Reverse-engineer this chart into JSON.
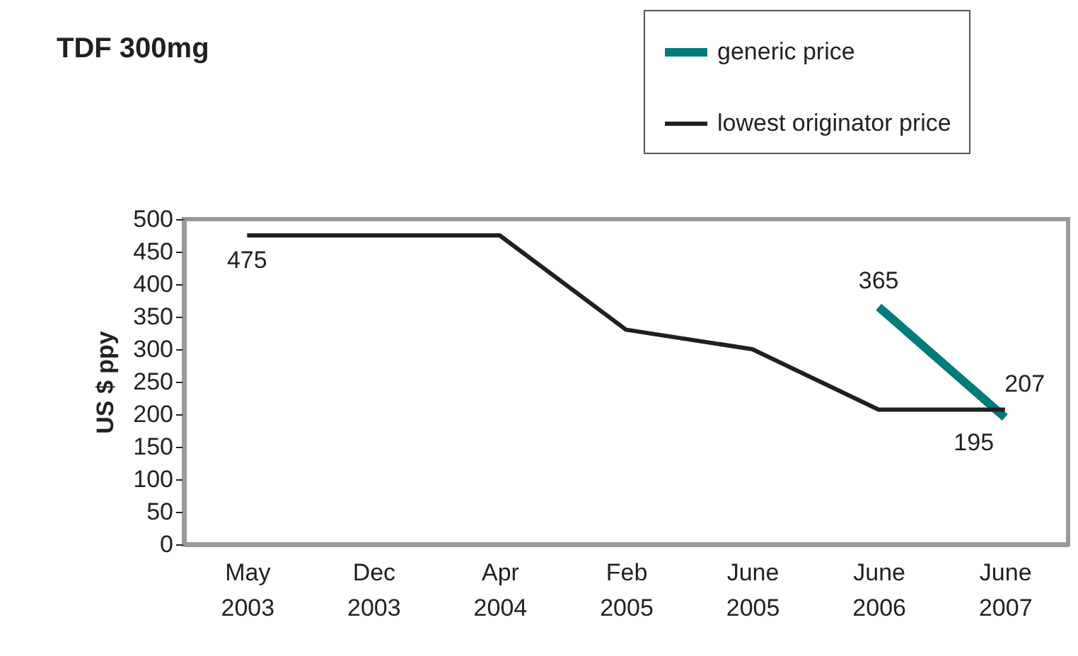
{
  "chart_data": {
    "type": "line",
    "title": "TDF 300mg",
    "ylabel": "US $ ppy",
    "categories": [
      "May 2003",
      "Dec 2003",
      "Apr 2004",
      "Feb 2005",
      "June 2005",
      "June 2006",
      "June 2007"
    ],
    "series": [
      {
        "name": "generic price",
        "color": "#007b7b",
        "values": [
          null,
          null,
          null,
          null,
          null,
          365,
          195
        ],
        "value_labels": [
          null,
          null,
          null,
          null,
          null,
          "365",
          "195"
        ]
      },
      {
        "name": "lowest originator price",
        "color": "#231f20",
        "values": [
          475,
          475,
          475,
          330,
          300,
          207,
          207
        ],
        "value_labels": [
          "475",
          null,
          null,
          null,
          null,
          null,
          "207"
        ]
      }
    ],
    "ylim": [
      0,
      500
    ],
    "yticks": [
      0,
      50,
      100,
      150,
      200,
      250,
      300,
      350,
      400,
      450,
      500
    ],
    "grid": false,
    "legend": "top right",
    "marker": "none",
    "line_style": "solid"
  }
}
